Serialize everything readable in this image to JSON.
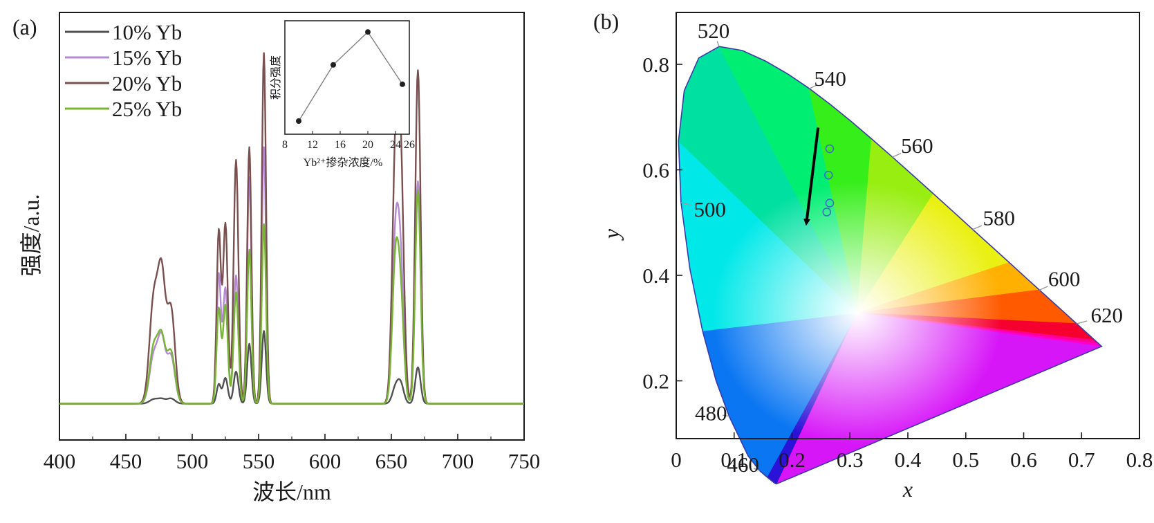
{
  "panels": {
    "a": {
      "label": "(a)"
    },
    "b": {
      "label": "(b)"
    }
  },
  "chart_data": [
    {
      "type": "line",
      "panel": "a",
      "xlabel": "波长/nm",
      "ylabel": "强度/a.u.",
      "xlim": [
        400,
        750
      ],
      "ylim": [
        0,
        1
      ],
      "xticks": [
        "400",
        "450",
        "500",
        "550",
        "600",
        "650",
        "700",
        "750"
      ],
      "grid": false,
      "legend_position": "top-left",
      "peaks": [
        {
          "center": 471,
          "width": 3.2
        },
        {
          "center": 477,
          "width": 2.8
        },
        {
          "center": 484,
          "width": 3.0
        },
        {
          "center": 520,
          "width": 1.6
        },
        {
          "center": 525,
          "width": 1.8
        },
        {
          "center": 533,
          "width": 1.8
        },
        {
          "center": 543,
          "width": 1.6
        },
        {
          "center": 554,
          "width": 1.6
        },
        {
          "center": 653,
          "width": 2.4
        },
        {
          "center": 657,
          "width": 2.4
        },
        {
          "center": 670,
          "width": 2.0
        }
      ],
      "series": [
        {
          "name": "10% Yb",
          "color": "#505050",
          "baseline": 0.085,
          "amplitudes": [
            0.01,
            0.01,
            0.012,
            0.045,
            0.06,
            0.075,
            0.14,
            0.17,
            0.035,
            0.045,
            0.085
          ]
        },
        {
          "name": "15% Yb",
          "color": "#b48ad6",
          "baseline": 0.085,
          "amplitudes": [
            0.11,
            0.14,
            0.11,
            0.3,
            0.27,
            0.3,
            0.53,
            0.6,
            0.36,
            0.3,
            0.52
          ]
        },
        {
          "name": "20% Yb",
          "color": "#7a4f4f",
          "baseline": 0.085,
          "amplitudes": [
            0.24,
            0.28,
            0.22,
            0.4,
            0.42,
            0.57,
            0.6,
            0.82,
            0.53,
            0.53,
            0.78
          ]
        },
        {
          "name": "25% Yb",
          "color": "#78b535",
          "baseline": 0.085,
          "amplitudes": [
            0.13,
            0.14,
            0.12,
            0.22,
            0.23,
            0.26,
            0.36,
            0.42,
            0.31,
            0.23,
            0.5
          ]
        }
      ],
      "inset": {
        "type": "line",
        "xlabel": "Yb²⁺掺杂浓度/%",
        "ylabel": "积分强度",
        "xlim": [
          8,
          26
        ],
        "ylim": [
          0,
          1
        ],
        "xticks": [
          "8",
          "12",
          "16",
          "20",
          "24",
          "26"
        ],
        "x": [
          10,
          15,
          20,
          25
        ],
        "y": [
          0.05,
          0.63,
          0.97,
          0.43
        ],
        "color": "#808080"
      }
    },
    {
      "type": "scatter",
      "panel": "b",
      "title": "",
      "xlabel": "x",
      "ylabel": "y",
      "xlim": [
        0,
        0.8
      ],
      "ylim": [
        0,
        0.9
      ],
      "xticks": [
        "0",
        "0.1",
        "0.2",
        "0.3",
        "0.4",
        "0.5",
        "0.6",
        "0.7",
        "0.8"
      ],
      "yticks": [
        "0.2",
        "0.4",
        "0.6",
        "0.8"
      ],
      "grid": false,
      "points": [
        {
          "x": 0.265,
          "y": 0.64
        },
        {
          "x": 0.263,
          "y": 0.59
        },
        {
          "x": 0.265,
          "y": 0.537
        },
        {
          "x": 0.26,
          "y": 0.52
        }
      ],
      "point_color": "#3a6fc0",
      "arrow": {
        "from": [
          0.245,
          0.68
        ],
        "to": [
          0.225,
          0.49
        ]
      },
      "white_point": {
        "x": 0.3127,
        "y": 0.329
      },
      "locus_labels": [
        {
          "text": "460",
          "x": 0.144,
          "y": 0.03
        },
        {
          "text": "480",
          "x": 0.091,
          "y": 0.133
        },
        {
          "text": "500",
          "x": 0.008,
          "y": 0.538
        },
        {
          "text": "520",
          "x": 0.074,
          "y": 0.834
        },
        {
          "text": "540",
          "x": 0.23,
          "y": 0.754
        },
        {
          "text": "560",
          "x": 0.373,
          "y": 0.624
        },
        {
          "text": "580",
          "x": 0.512,
          "y": 0.487
        },
        {
          "text": "600",
          "x": 0.627,
          "y": 0.372
        },
        {
          "text": "620",
          "x": 0.691,
          "y": 0.308
        }
      ],
      "locus": [
        [
          0.1741,
          0.005
        ],
        [
          0.1738,
          0.0049
        ],
        [
          0.1733,
          0.0048
        ],
        [
          0.1726,
          0.0048
        ],
        [
          0.1714,
          0.0051
        ],
        [
          0.1689,
          0.0069
        ],
        [
          0.1644,
          0.0109
        ],
        [
          0.1566,
          0.0177
        ],
        [
          0.144,
          0.0297
        ],
        [
          0.1241,
          0.0578
        ],
        [
          0.0913,
          0.1327
        ],
        [
          0.0687,
          0.2007
        ],
        [
          0.0454,
          0.295
        ],
        [
          0.0235,
          0.4127
        ],
        [
          0.0082,
          0.5384
        ],
        [
          0.0039,
          0.6548
        ],
        [
          0.0139,
          0.7502
        ],
        [
          0.0389,
          0.812
        ],
        [
          0.0743,
          0.8338
        ],
        [
          0.1142,
          0.8262
        ],
        [
          0.1547,
          0.8059
        ],
        [
          0.1929,
          0.7816
        ],
        [
          0.2296,
          0.7543
        ],
        [
          0.2658,
          0.7243
        ],
        [
          0.3016,
          0.6923
        ],
        [
          0.3373,
          0.6589
        ],
        [
          0.3731,
          0.6245
        ],
        [
          0.4087,
          0.5896
        ],
        [
          0.4441,
          0.5547
        ],
        [
          0.4788,
          0.5202
        ],
        [
          0.5125,
          0.4866
        ],
        [
          0.5448,
          0.4544
        ],
        [
          0.5752,
          0.4242
        ],
        [
          0.6029,
          0.3965
        ],
        [
          0.627,
          0.3725
        ],
        [
          0.6482,
          0.3514
        ],
        [
          0.6658,
          0.334
        ],
        [
          0.6801,
          0.3197
        ],
        [
          0.6915,
          0.3083
        ],
        [
          0.7006,
          0.2993
        ],
        [
          0.7079,
          0.292
        ],
        [
          0.714,
          0.2859
        ],
        [
          0.719,
          0.2809
        ],
        [
          0.723,
          0.277
        ],
        [
          0.726,
          0.274
        ],
        [
          0.7283,
          0.2717
        ],
        [
          0.73,
          0.27
        ],
        [
          0.7347,
          0.2653
        ]
      ]
    }
  ]
}
